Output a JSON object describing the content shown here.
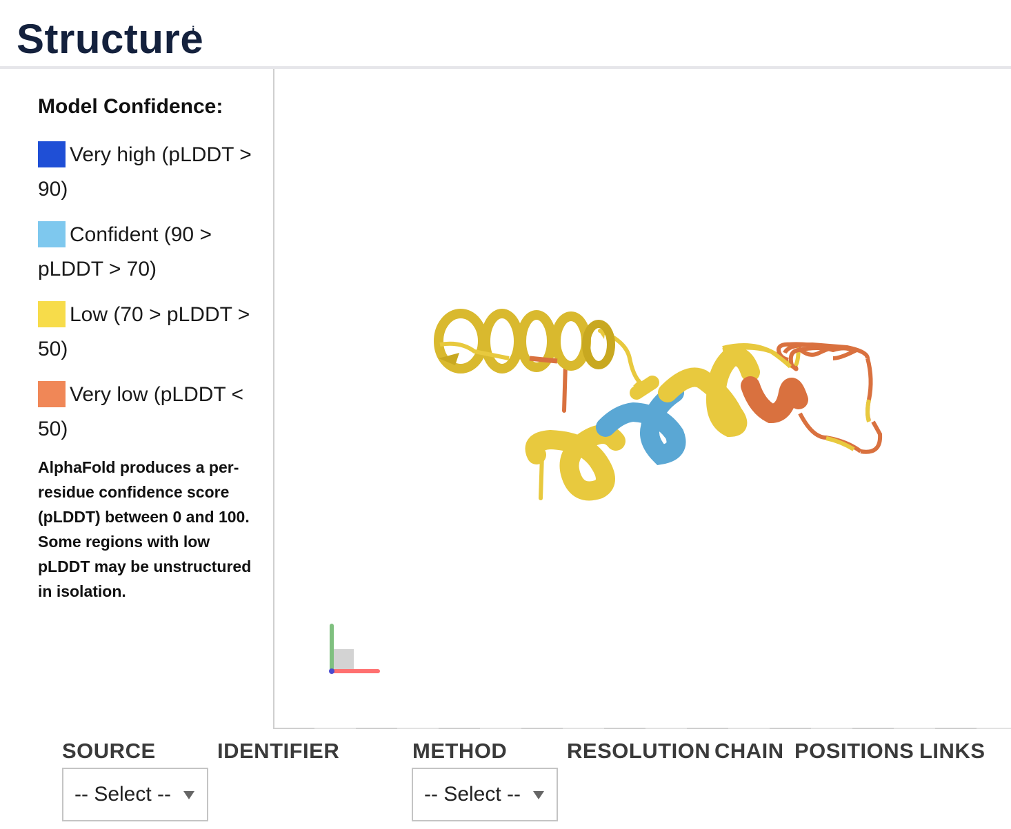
{
  "header": {
    "title": "Structure",
    "info_marker": "i"
  },
  "legend": {
    "title": "Model Confidence:",
    "items": [
      {
        "label": "Very high (pLDDT > 90)",
        "color": "#1f4fd6"
      },
      {
        "label": "Confident (90 > pLDDT > 70)",
        "color": "#7ec8ee"
      },
      {
        "label": "Low (70 > pLDDT > 50)",
        "color": "#f7dc4a"
      },
      {
        "label": "Very low (pLDDT < 50)",
        "color": "#f08757"
      }
    ],
    "note": "AlphaFold produces a per-residue confidence score (pLDDT) between 0 and 100. Some regions with low pLDDT may be unstructured in isolation."
  },
  "viewer": {
    "colors": {
      "low": "#e8c93e",
      "low_dark": "#c8a820",
      "confident": "#5aa7d4",
      "very_low": "#d9713f"
    }
  },
  "table": {
    "columns": [
      "SOURCE",
      "IDENTIFIER",
      "METHOD",
      "RESOLUTION",
      "CHAIN",
      "POSITIONS",
      "LINKS"
    ],
    "source_select": "-- Select --",
    "method_select": "-- Select --"
  }
}
